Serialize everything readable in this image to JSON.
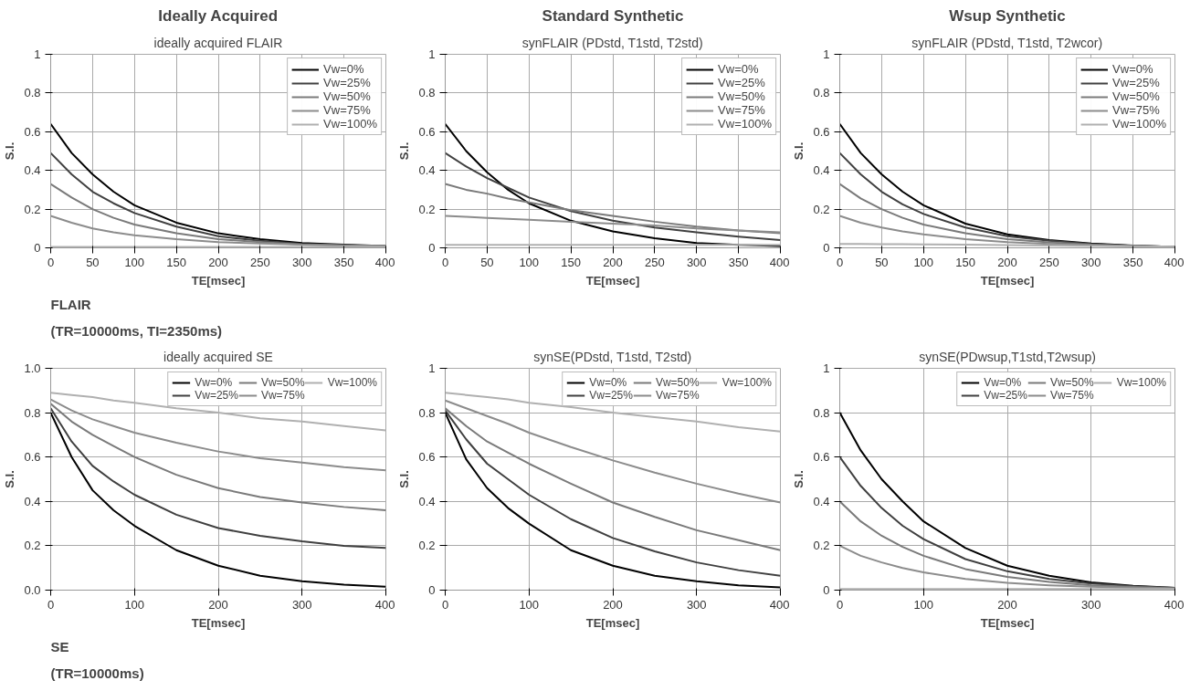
{
  "chart_data": [
    {
      "type": "line",
      "title": "ideally acquired FLAIR",
      "xlabel": "TE[msec]",
      "ylabel": "S.I.",
      "annotations": [
        "Ideally Acquired",
        "FLAIR",
        "(TR=10000ms, TI=2350ms)"
      ],
      "x": [
        0,
        25,
        50,
        75,
        100,
        150,
        200,
        250,
        300,
        350,
        400
      ],
      "xlim": [
        0,
        400
      ],
      "xticks": [
        0,
        50,
        100,
        150,
        200,
        250,
        300,
        350,
        400
      ],
      "ylim": [
        0,
        1
      ],
      "yticks": [
        0,
        0.2,
        0.4,
        0.6,
        0.8,
        1
      ],
      "grid": true,
      "legend": "top right",
      "series": [
        {
          "name": "Vw=0%",
          "color": "#000000",
          "values": [
            0.64,
            0.49,
            0.38,
            0.29,
            0.22,
            0.13,
            0.075,
            0.045,
            0.025,
            0.016,
            0.01
          ]
        },
        {
          "name": "Vw=25%",
          "color": "#404040",
          "values": [
            0.49,
            0.38,
            0.29,
            0.23,
            0.18,
            0.11,
            0.06,
            0.036,
            0.02,
            0.013,
            0.01
          ]
        },
        {
          "name": "Vw=50%",
          "color": "#7a7a7a",
          "values": [
            0.33,
            0.26,
            0.2,
            0.155,
            0.12,
            0.075,
            0.045,
            0.03,
            0.017,
            0.012,
            0.01
          ]
        },
        {
          "name": "Vw=75%",
          "color": "#8c8c8c",
          "values": [
            0.165,
            0.13,
            0.1,
            0.08,
            0.065,
            0.045,
            0.03,
            0.022,
            0.017,
            0.013,
            0.01
          ]
        },
        {
          "name": "Vw=100%",
          "color": "#b0b0b0",
          "values": [
            0.005,
            0.005,
            0.005,
            0.005,
            0.005,
            0.005,
            0.005,
            0.005,
            0.005,
            0.005,
            0.005
          ]
        }
      ]
    },
    {
      "type": "line",
      "title": "synFLAIR (PDstd, T1std, T2std)",
      "xlabel": "TE[msec]",
      "ylabel": "S.I.",
      "annotations": [
        "Standard Synthetic"
      ],
      "x": [
        0,
        25,
        50,
        75,
        100,
        150,
        200,
        250,
        300,
        350,
        400
      ],
      "xlim": [
        0,
        400
      ],
      "xticks": [
        0,
        50,
        100,
        150,
        200,
        250,
        300,
        350,
        400
      ],
      "ylim": [
        0,
        1
      ],
      "yticks": [
        0,
        0.2,
        0.4,
        0.6,
        0.8,
        1
      ],
      "grid": true,
      "legend": "top right",
      "series": [
        {
          "name": "Vw=0%",
          "color": "#000000",
          "values": [
            0.64,
            0.5,
            0.39,
            0.3,
            0.23,
            0.14,
            0.085,
            0.05,
            0.025,
            0.015,
            0.01
          ]
        },
        {
          "name": "Vw=25%",
          "color": "#404040",
          "values": [
            0.49,
            0.42,
            0.36,
            0.31,
            0.26,
            0.19,
            0.14,
            0.105,
            0.08,
            0.058,
            0.04
          ]
        },
        {
          "name": "Vw=50%",
          "color": "#7a7a7a",
          "values": [
            0.33,
            0.3,
            0.28,
            0.255,
            0.235,
            0.195,
            0.165,
            0.135,
            0.11,
            0.09,
            0.075
          ]
        },
        {
          "name": "Vw=75%",
          "color": "#8c8c8c",
          "values": [
            0.165,
            0.16,
            0.155,
            0.15,
            0.145,
            0.135,
            0.125,
            0.115,
            0.1,
            0.09,
            0.08
          ]
        },
        {
          "name": "Vw=100%",
          "color": "#b0b0b0",
          "values": [
            0.015,
            0.015,
            0.015,
            0.015,
            0.015,
            0.015,
            0.015,
            0.015,
            0.015,
            0.015,
            0.015
          ]
        }
      ]
    },
    {
      "type": "line",
      "title": "synFLAIR (PDstd, T1std, T2wcor)",
      "xlabel": "TE[msec]",
      "ylabel": "S.I.",
      "annotations": [
        "Wsup Synthetic"
      ],
      "x": [
        0,
        25,
        50,
        75,
        100,
        150,
        200,
        250,
        300,
        350,
        400
      ],
      "xlim": [
        0,
        400
      ],
      "xticks": [
        0,
        50,
        100,
        150,
        200,
        250,
        300,
        350,
        400
      ],
      "ylim": [
        0,
        1
      ],
      "yticks": [
        0,
        0.2,
        0.4,
        0.6,
        0.8,
        1
      ],
      "grid": true,
      "legend": "top right",
      "series": [
        {
          "name": "Vw=0%",
          "color": "#000000",
          "values": [
            0.64,
            0.49,
            0.38,
            0.29,
            0.22,
            0.125,
            0.07,
            0.04,
            0.022,
            0.012,
            0.005
          ]
        },
        {
          "name": "Vw=25%",
          "color": "#404040",
          "values": [
            0.49,
            0.38,
            0.29,
            0.225,
            0.175,
            0.105,
            0.06,
            0.036,
            0.02,
            0.011,
            0.005
          ]
        },
        {
          "name": "Vw=50%",
          "color": "#7a7a7a",
          "values": [
            0.33,
            0.255,
            0.2,
            0.155,
            0.12,
            0.075,
            0.045,
            0.028,
            0.017,
            0.01,
            0.005
          ]
        },
        {
          "name": "Vw=75%",
          "color": "#8c8c8c",
          "values": [
            0.165,
            0.13,
            0.105,
            0.085,
            0.07,
            0.045,
            0.03,
            0.02,
            0.013,
            0.008,
            0.005
          ]
        },
        {
          "name": "Vw=100%",
          "color": "#b0b0b0",
          "values": [
            0.02,
            0.02,
            0.019,
            0.019,
            0.018,
            0.016,
            0.014,
            0.012,
            0.01,
            0.008,
            0.006
          ]
        }
      ]
    },
    {
      "type": "line",
      "title": "ideally acquired SE",
      "xlabel": "TE[msec]",
      "ylabel": "S.I.",
      "annotations": [
        "SE",
        "(TR=10000ms)"
      ],
      "x": [
        0,
        25,
        50,
        75,
        100,
        150,
        200,
        250,
        300,
        350,
        400
      ],
      "xlim": [
        0,
        400
      ],
      "xticks": [
        0,
        100,
        200,
        300,
        400
      ],
      "ylim": [
        0,
        1
      ],
      "yticks": [
        {
          "value": 0,
          "label": "0.0"
        },
        0.2,
        0.4,
        0.6,
        0.8,
        {
          "value": 1,
          "label": "1.0"
        }
      ],
      "grid": true,
      "legend": "top right",
      "series": [
        {
          "name": "Vw=0%",
          "color": "#000000",
          "values": [
            0.8,
            0.6,
            0.45,
            0.36,
            0.29,
            0.18,
            0.11,
            0.065,
            0.04,
            0.025,
            0.015
          ]
        },
        {
          "name": "Vw=25%",
          "color": "#404040",
          "values": [
            0.82,
            0.67,
            0.56,
            0.49,
            0.43,
            0.34,
            0.28,
            0.245,
            0.22,
            0.2,
            0.19
          ]
        },
        {
          "name": "Vw=50%",
          "color": "#7a7a7a",
          "values": [
            0.84,
            0.76,
            0.7,
            0.65,
            0.6,
            0.52,
            0.46,
            0.42,
            0.395,
            0.375,
            0.36
          ]
        },
        {
          "name": "Vw=75%",
          "color": "#8c8c8c",
          "values": [
            0.86,
            0.81,
            0.77,
            0.74,
            0.71,
            0.665,
            0.625,
            0.595,
            0.575,
            0.555,
            0.54
          ]
        },
        {
          "name": "Vw=100%",
          "color": "#b0b0b0",
          "values": [
            0.89,
            0.88,
            0.87,
            0.855,
            0.845,
            0.82,
            0.8,
            0.775,
            0.76,
            0.74,
            0.72
          ]
        }
      ]
    },
    {
      "type": "line",
      "title": "synSE(PDstd, T1std, T2std)",
      "xlabel": "TE[msec]",
      "ylabel": "S.I.",
      "x": [
        0,
        25,
        50,
        75,
        100,
        150,
        200,
        250,
        300,
        350,
        400
      ],
      "xlim": [
        0,
        400
      ],
      "xticks": [
        0,
        100,
        200,
        300,
        400
      ],
      "ylim": [
        0,
        1
      ],
      "yticks": [
        0,
        0.2,
        0.4,
        0.6,
        0.8,
        1
      ],
      "grid": true,
      "legend": "top right",
      "series": [
        {
          "name": "Vw=0%",
          "color": "#000000",
          "values": [
            0.8,
            0.59,
            0.46,
            0.37,
            0.3,
            0.18,
            0.11,
            0.065,
            0.04,
            0.022,
            0.012
          ]
        },
        {
          "name": "Vw=25%",
          "color": "#404040",
          "values": [
            0.81,
            0.68,
            0.57,
            0.5,
            0.43,
            0.32,
            0.235,
            0.175,
            0.125,
            0.09,
            0.065
          ]
        },
        {
          "name": "Vw=50%",
          "color": "#7a7a7a",
          "values": [
            0.82,
            0.74,
            0.67,
            0.62,
            0.57,
            0.48,
            0.395,
            0.33,
            0.27,
            0.225,
            0.18
          ]
        },
        {
          "name": "Vw=75%",
          "color": "#8c8c8c",
          "values": [
            0.855,
            0.82,
            0.785,
            0.75,
            0.71,
            0.645,
            0.585,
            0.53,
            0.48,
            0.435,
            0.395
          ]
        },
        {
          "name": "Vw=100%",
          "color": "#b0b0b0",
          "values": [
            0.89,
            0.88,
            0.87,
            0.86,
            0.845,
            0.825,
            0.8,
            0.78,
            0.76,
            0.735,
            0.715
          ]
        }
      ]
    },
    {
      "type": "line",
      "title": "synSE(PDwsup,T1std,T2wsup)",
      "xlabel": "TE[msec]",
      "ylabel": "S.I.",
      "x": [
        0,
        25,
        50,
        75,
        100,
        150,
        200,
        250,
        300,
        350,
        400
      ],
      "xlim": [
        0,
        400
      ],
      "xticks": [
        0,
        100,
        200,
        300,
        400
      ],
      "ylim": [
        0,
        1
      ],
      "yticks": [
        0,
        0.2,
        0.4,
        0.6,
        0.8,
        1
      ],
      "grid": true,
      "legend": "top right",
      "series": [
        {
          "name": "Vw=0%",
          "color": "#000000",
          "values": [
            0.8,
            0.63,
            0.5,
            0.4,
            0.31,
            0.19,
            0.11,
            0.065,
            0.035,
            0.02,
            0.01
          ]
        },
        {
          "name": "Vw=25%",
          "color": "#404040",
          "values": [
            0.6,
            0.47,
            0.37,
            0.29,
            0.23,
            0.14,
            0.085,
            0.05,
            0.03,
            0.018,
            0.01
          ]
        },
        {
          "name": "Vw=50%",
          "color": "#7a7a7a",
          "values": [
            0.4,
            0.31,
            0.245,
            0.195,
            0.155,
            0.095,
            0.06,
            0.037,
            0.022,
            0.014,
            0.008
          ]
        },
        {
          "name": "Vw=75%",
          "color": "#8c8c8c",
          "values": [
            0.2,
            0.155,
            0.125,
            0.1,
            0.08,
            0.05,
            0.033,
            0.022,
            0.015,
            0.01,
            0.007
          ]
        },
        {
          "name": "Vw=100%",
          "color": "#b0b0b0",
          "values": [
            0.005,
            0.005,
            0.005,
            0.005,
            0.005,
            0.005,
            0.005,
            0.005,
            0.005,
            0.005,
            0.005
          ]
        }
      ]
    }
  ]
}
